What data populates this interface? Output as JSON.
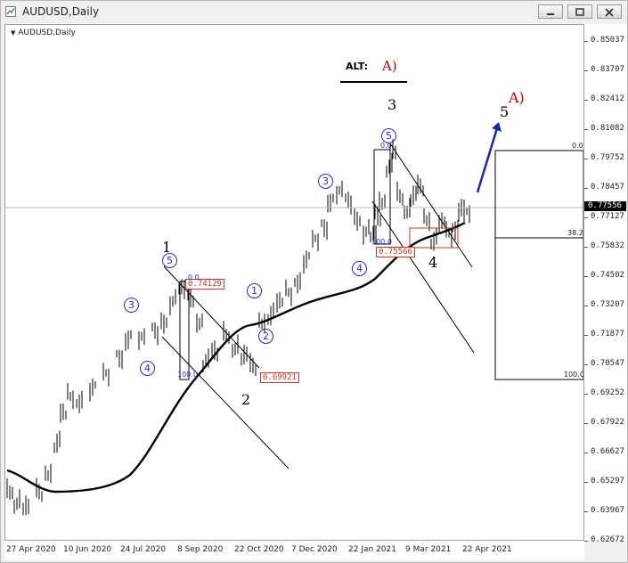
{
  "window": {
    "title": "AUDUSD,Daily",
    "buttons": [
      "minimize",
      "restore",
      "close"
    ]
  },
  "chart": {
    "symbol_label": "AUDUSD,Daily",
    "current_price": "0.77556",
    "alt_label": "ALT:",
    "alt_wave": "A)",
    "price_ticks": [
      "0.85037",
      "0.83707",
      "0.82412",
      "0.81082",
      "0.79752",
      "0.78457",
      "0.77127",
      "0.75832",
      "0.74502",
      "0.73207",
      "0.71877",
      "0.70547",
      "0.69252",
      "0.67922",
      "0.66627",
      "0.65297",
      "0.63967",
      "0.62672"
    ],
    "time_ticks": [
      "27 Apr 2020",
      "10 Jun 2020",
      "24 Jul 2020",
      "8 Sep 2020",
      "22 Oct 2020",
      "7 Dec 2020",
      "22 Jan 2021",
      "9 Mar 2021",
      "22 Apr 2021"
    ],
    "wave_labels": {
      "w1": "1",
      "w2": "2",
      "w3": "3",
      "w4": "4",
      "w5": "5",
      "wA": "A)",
      "c1": "1",
      "c2": "2",
      "c3a": "3",
      "c3b": "3",
      "c4a": "4",
      "c4b": "4",
      "c5a": "5",
      "c5b": "5"
    },
    "price_boxes": {
      "b1": "0.74129",
      "b2": "0.69921",
      "b3": "0.75566"
    },
    "fib_texts": {
      "f1": "0.0",
      "f2": "100.0",
      "f3": "0.0",
      "f4": "100.0",
      "f5": "0.0",
      "f6": "38.2",
      "f7": "100.0"
    },
    "colors": {
      "wave_blue": "#2a2ad0",
      "wave_red": "#cc0000",
      "moving_average": "#000000",
      "arrow": "#1a2aa0"
    }
  }
}
